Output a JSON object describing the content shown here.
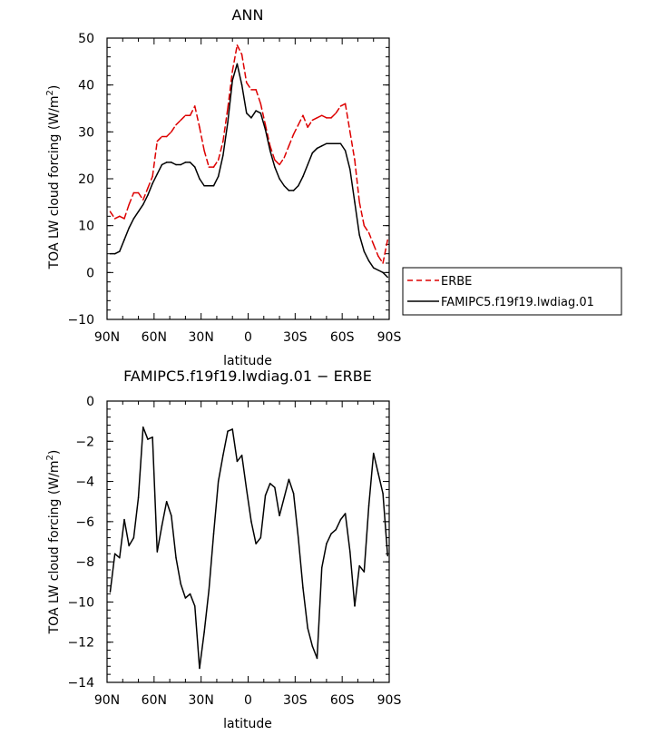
{
  "chart_data": [
    {
      "type": "line",
      "title": "ANN",
      "xlabel": "latitude",
      "ylabel": "TOA LW cloud forcing (W/m",
      "ylabel_sup": "2",
      "ylabel_end": ")",
      "xlim": [
        90,
        -90
      ],
      "ylim": [
        -10,
        50
      ],
      "x_ticks": [
        90,
        60,
        30,
        0,
        -30,
        -60,
        -90
      ],
      "x_tick_labels": [
        "90N",
        "60N",
        "30N",
        "0",
        "30S",
        "60S",
        "90S"
      ],
      "y_ticks": [
        -10,
        0,
        10,
        20,
        30,
        40,
        50
      ],
      "y_tick_labels": [
        "−10",
        "0",
        "10",
        "20",
        "30",
        "40",
        "50"
      ],
      "legend_position": "right",
      "series": [
        {
          "name": "ERBE",
          "color": "#dd0000",
          "dash": "dashed",
          "x": [
            88,
            85,
            82,
            79,
            76,
            73,
            70,
            67,
            64,
            61,
            58,
            55,
            52,
            49,
            46,
            43,
            40,
            37,
            34,
            31,
            28,
            25,
            22,
            19,
            16,
            13,
            10,
            7,
            4,
            1,
            -2,
            -5,
            -8,
            -11,
            -14,
            -17,
            -20,
            -23,
            -26,
            -29,
            -32,
            -35,
            -38,
            -41,
            -44,
            -47,
            -50,
            -53,
            -56,
            -59,
            -62,
            -65,
            -68,
            -71,
            -74,
            -77,
            -80,
            -83,
            -86,
            -89
          ],
          "y": [
            13,
            11.5,
            12,
            11.5,
            14.5,
            17,
            17,
            15.5,
            18,
            20.5,
            28,
            29,
            29,
            30,
            31.5,
            32.5,
            33.5,
            33.5,
            35.5,
            31,
            26,
            22.5,
            22.5,
            24,
            28,
            35,
            43,
            48.5,
            46.5,
            40.5,
            39,
            39,
            36,
            31.5,
            27,
            24,
            23,
            24.5,
            27,
            29.5,
            31.5,
            33.5,
            31,
            32.5,
            33,
            33.5,
            33,
            33,
            34,
            35.5,
            36,
            30,
            24,
            15,
            10,
            8.5,
            6,
            3.5,
            2,
            7
          ]
        },
        {
          "name": "FAMIPC5.f19f19.lwdiag.01",
          "color": "#000000",
          "dash": "solid",
          "x": [
            88,
            85,
            82,
            79,
            76,
            73,
            70,
            67,
            64,
            61,
            58,
            55,
            52,
            49,
            46,
            43,
            40,
            37,
            34,
            31,
            28,
            25,
            22,
            19,
            16,
            13,
            10,
            7,
            4,
            1,
            -2,
            -5,
            -8,
            -11,
            -14,
            -17,
            -20,
            -23,
            -26,
            -29,
            -32,
            -35,
            -38,
            -41,
            -44,
            -47,
            -50,
            -53,
            -56,
            -59,
            -62,
            -65,
            -68,
            -71,
            -74,
            -77,
            -80,
            -83,
            -86,
            -89
          ],
          "y": [
            4,
            4,
            4.5,
            7,
            9.5,
            11.5,
            13,
            14.5,
            16.5,
            19,
            21,
            23,
            23.5,
            23.5,
            23,
            23,
            23.5,
            23.5,
            22.5,
            20,
            18.5,
            18.5,
            18.5,
            20.5,
            25,
            32,
            41,
            44.5,
            40,
            34,
            33,
            34.5,
            34,
            30.5,
            26,
            22.5,
            20,
            18.5,
            17.5,
            17.5,
            18.5,
            20.5,
            23,
            25.5,
            26.5,
            27,
            27.5,
            27.5,
            27.5,
            27.5,
            26,
            22,
            15,
            8,
            4.5,
            2.5,
            1,
            0.5,
            0,
            -1
          ]
        }
      ]
    },
    {
      "type": "line",
      "title": "FAMIPC5.f19f19.lwdiag.01 − ERBE",
      "xlabel": "latitude",
      "ylabel": "TOA LW cloud forcing (W/m",
      "ylabel_sup": "2",
      "ylabel_end": ")",
      "xlim": [
        90,
        -90
      ],
      "ylim": [
        -14,
        0
      ],
      "x_ticks": [
        90,
        60,
        30,
        0,
        -30,
        -60,
        -90
      ],
      "x_tick_labels": [
        "90N",
        "60N",
        "30N",
        "0",
        "30S",
        "60S",
        "90S"
      ],
      "y_ticks": [
        -14,
        -12,
        -10,
        -8,
        -6,
        -4,
        -2,
        0
      ],
      "y_tick_labels": [
        "−14",
        "−12",
        "−10",
        "−8",
        "−6",
        "−4",
        "−2",
        "0"
      ],
      "series": [
        {
          "color": "#000000",
          "dash": "solid",
          "x": [
            88,
            85,
            82,
            79,
            76,
            73,
            70,
            67,
            64,
            61,
            58,
            55,
            52,
            49,
            46,
            43,
            40,
            37,
            34,
            31,
            28,
            25,
            22,
            19,
            16,
            13,
            10,
            7,
            4,
            1,
            -2,
            -5,
            -8,
            -11,
            -14,
            -17,
            -20,
            -23,
            -26,
            -29,
            -32,
            -35,
            -38,
            -41,
            -44,
            -47,
            -50,
            -53,
            -56,
            -59,
            -62,
            -65,
            -68,
            -71,
            -74,
            -77,
            -80,
            -83,
            -86,
            -89
          ],
          "y": [
            -9.5,
            -7.6,
            -7.8,
            -5.9,
            -7.2,
            -6.8,
            -4.8,
            -1.3,
            -1.9,
            -1.8,
            -7.5,
            -6.2,
            -5.0,
            -5.7,
            -7.8,
            -9.1,
            -9.8,
            -9.6,
            -10.2,
            -13.3,
            -11.5,
            -9.4,
            -6.6,
            -4.0,
            -2.7,
            -1.5,
            -1.4,
            -3.0,
            -2.7,
            -4.4,
            -6.0,
            -7.1,
            -6.8,
            -4.7,
            -4.1,
            -4.3,
            -5.7,
            -4.8,
            -3.9,
            -4.6,
            -6.8,
            -9.3,
            -11.3,
            -12.2,
            -12.8,
            -8.3,
            -7.1,
            -6.6,
            -6.4,
            -5.9,
            -5.6,
            -7.5,
            -10.2,
            -8.2,
            -8.5,
            -5.2,
            -2.6,
            -3.6,
            -4.6,
            -7.7
          ]
        }
      ]
    }
  ],
  "icons": {
    "legend_line_dashed": "dashed-line-swatch",
    "legend_line_solid": "solid-line-swatch"
  }
}
